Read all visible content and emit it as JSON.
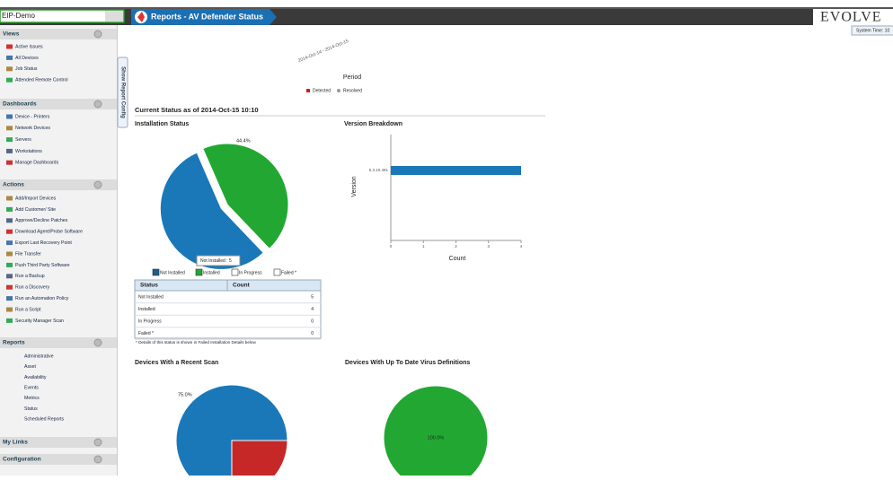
{
  "header": {
    "customer": "EIP-Demo",
    "breadcrumb": "Reports - AV Defender Status",
    "logo": "EVOLVE",
    "system_time": "System Time: 10"
  },
  "sidebar": [
    {
      "title": "Views",
      "items": [
        "Active Issues",
        "All Devices",
        "Job Status",
        "Attended Remote Control"
      ]
    },
    {
      "title": "Dashboards",
      "items": [
        "Device - Printers",
        "Network Devices",
        "Servers",
        "Workstations",
        "Manage Dashboards"
      ]
    },
    {
      "title": "Actions",
      "items": [
        "Add/Import Devices",
        "Add Customer/ Site",
        "Approve/Decline Patches",
        "Download Agent/Probe Software",
        "Export Last Recovery Point",
        "File Transfer",
        "Push Third Party Software",
        "Run a Backup",
        "Run a Discovery",
        "Run an Automation Policy",
        "Run a Script",
        "Security Manager Scan"
      ]
    },
    {
      "title": "Reports",
      "items": [
        "Administrative",
        "Asset",
        "Availability",
        "Events",
        "Metrics",
        "Status",
        "Scheduled Reports"
      ]
    },
    {
      "title": "My Links",
      "items": []
    },
    {
      "title": "Configuration",
      "items": []
    }
  ],
  "report_config_tab": "Show Report Config",
  "period_chart": {
    "date_range": "2014-Oct-14 - 2014-Oct-15",
    "x_label": "Period",
    "legend": [
      "Detected",
      "Resolved"
    ]
  },
  "current_status": "Current Status as of 2014-Oct-15 10:10",
  "installation": {
    "title": "Installation Status",
    "pie_label": "44.4%",
    "tooltip": "Not Installed : 5",
    "legend": [
      "Not Installed",
      "Installed",
      "In Progress",
      "Failed *"
    ],
    "columns": [
      "Status",
      "Count"
    ],
    "rows": [
      {
        "status": "Not Installed",
        "count": 5
      },
      {
        "status": "Installed",
        "count": 4
      },
      {
        "status": "In Progress",
        "count": 0
      },
      {
        "status": "Failed *",
        "count": 0
      }
    ],
    "note": "* Details of this status is shown in Failed Installation Details below"
  },
  "version_chart": {
    "title": "Version Breakdown",
    "y_label": "Version",
    "x_label": "Count",
    "categories": [
      "5.3.10.481"
    ],
    "values": [
      4
    ],
    "xlim": [
      0,
      4
    ],
    "xticks": [
      0,
      1,
      2,
      3,
      4
    ]
  },
  "recent_scan": {
    "title": "Devices With a Recent Scan",
    "slices": [
      {
        "value": 75,
        "label": "75.0%"
      },
      {
        "value": 25
      }
    ]
  },
  "virus_defs": {
    "title": "Devices With Up To Date Virus Definitions",
    "slices": [
      {
        "value": 100,
        "label": "100.0%"
      }
    ]
  }
}
